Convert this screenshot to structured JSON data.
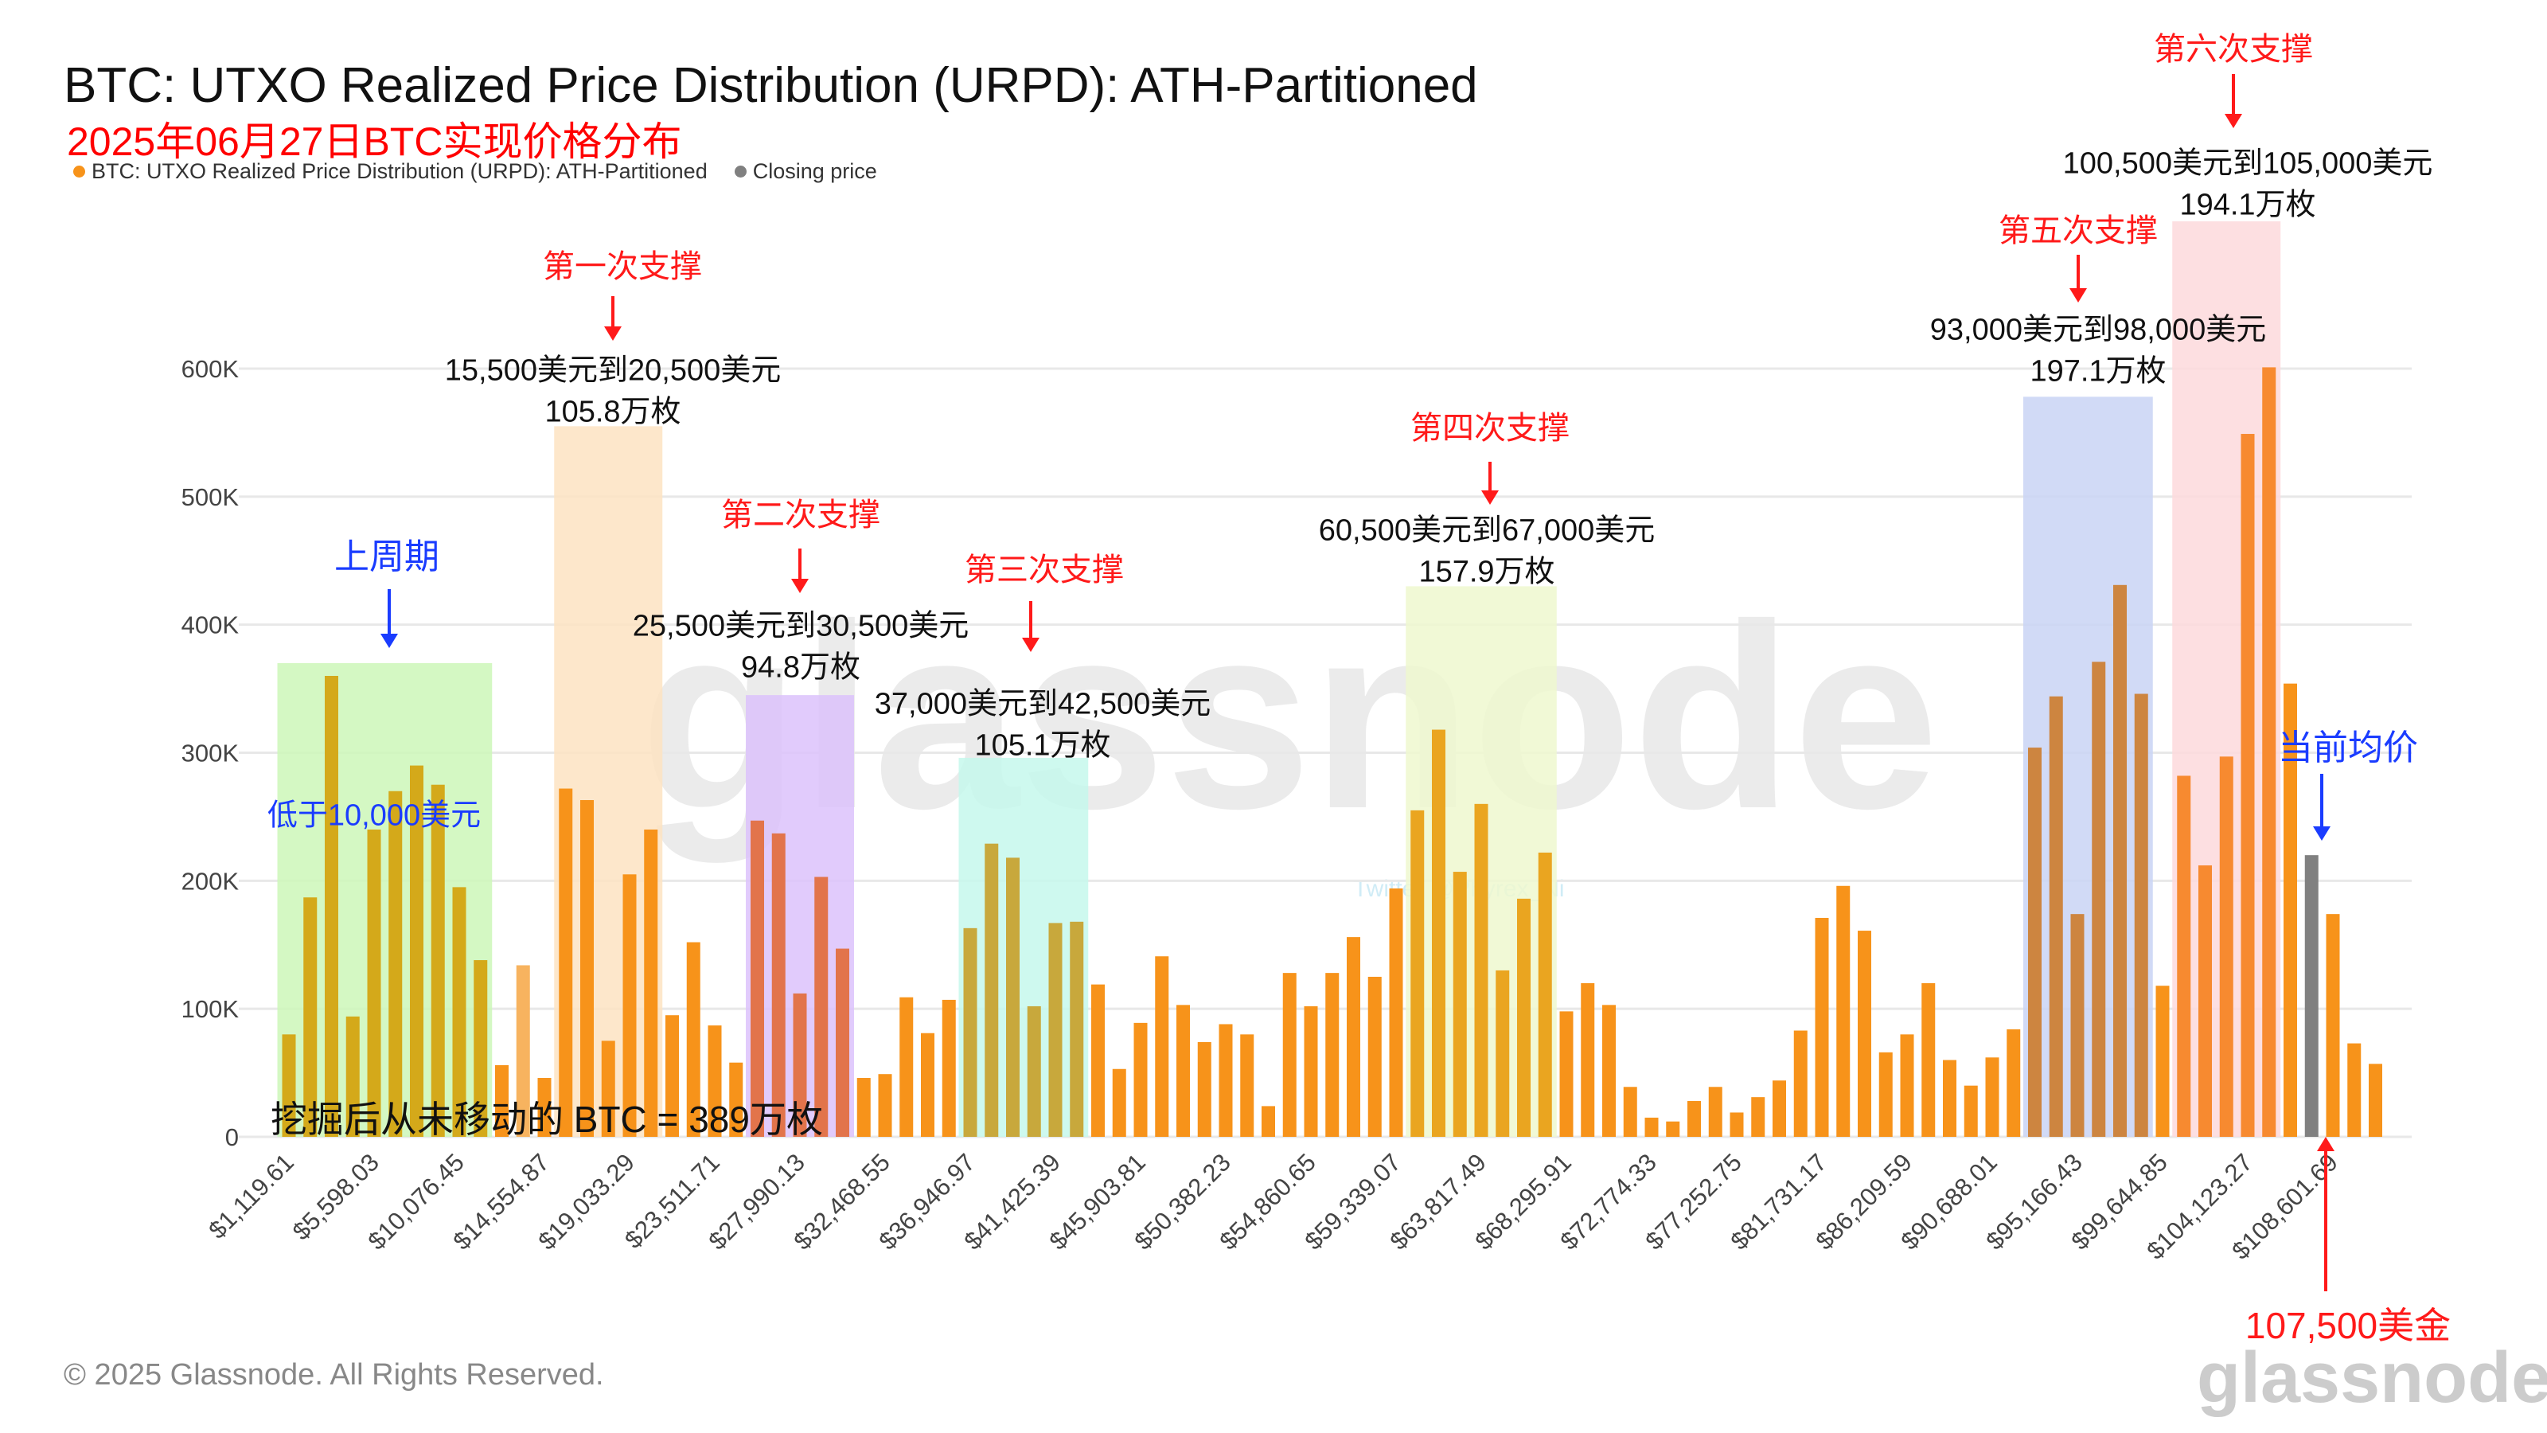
{
  "header": {
    "title": "BTC: UTXO Realized Price Distribution (URPD): ATH-Partitioned",
    "subtitle": "2025年06月27日BTC实现价格分布",
    "legend": [
      {
        "label": "BTC: UTXO Realized Price Distribution (URPD): ATH-Partitioned",
        "color": "#f7931a"
      },
      {
        "label": "Closing price",
        "color": "#808080"
      }
    ]
  },
  "chart_data": {
    "type": "bar",
    "title": "BTC: UTXO Realized Price Distribution (URPD): ATH-Partitioned",
    "ylim": [
      0,
      600000
    ],
    "y_ticks": [
      "0",
      "100K",
      "200K",
      "300K",
      "400K",
      "500K",
      "600K"
    ],
    "y_tick_values": [
      0,
      100000,
      200000,
      300000,
      400000,
      500000,
      600000
    ],
    "x_tick_labels": [
      "$1,119.61",
      "$5,598.03",
      "$10,076.45",
      "$14,554.87",
      "$19,033.29",
      "$23,511.71",
      "$27,990.13",
      "$32,468.55",
      "$36,946.97",
      "$41,425.39",
      "$45,903.81",
      "$50,382.23",
      "$54,860.65",
      "$59,339.07",
      "$63,817.49",
      "$68,295.91",
      "$72,774.33",
      "$77,252.75",
      "$81,731.17",
      "$86,209.59",
      "$90,688.01",
      "$95,166.43",
      "$99,644.85",
      "$104,123.27",
      "$108,601.69"
    ],
    "x_tick_every_n_bars": 4,
    "grid": true,
    "legend_position": "top-left",
    "closing_price_bar_index": 95,
    "values": [
      80000,
      187000,
      360000,
      94000,
      240000,
      270000,
      290000,
      275000,
      195000,
      138000,
      56000,
      134000,
      46000,
      272000,
      263000,
      75000,
      205000,
      240000,
      95000,
      152000,
      87000,
      58000,
      247000,
      237000,
      112000,
      203000,
      147000,
      46000,
      49000,
      109000,
      81000,
      107000,
      163000,
      229000,
      218000,
      102000,
      167000,
      168000,
      119000,
      53000,
      89000,
      141000,
      103000,
      74000,
      88000,
      80000,
      24000,
      128000,
      102000,
      128000,
      156000,
      125000,
      194000,
      255000,
      318000,
      207000,
      260000,
      130000,
      186000,
      222000,
      98000,
      120000,
      103000,
      39000,
      15000,
      12000,
      28000,
      39000,
      19000,
      31000,
      44000,
      83000,
      171000,
      196000,
      161000,
      66000,
      80000,
      120000,
      60000,
      40000,
      62000,
      84000,
      304000,
      344000,
      174000,
      371000,
      431000,
      346000,
      118000,
      282000,
      212000,
      297000,
      549000,
      601000,
      354000,
      220000,
      174000,
      73000,
      57000
    ],
    "colors": {
      "default": "#f7931a",
      "closing": "#808080"
    },
    "highlights": [
      {
        "from": 0,
        "to": 9,
        "top": 370000,
        "color": "#ccf7b8",
        "bar_color": "#d4a91a"
      },
      {
        "from": 13,
        "to": 17,
        "top": 555000,
        "color": "#fde3c2",
        "bar_color": "#f7931a"
      },
      {
        "from": 22,
        "to": 26,
        "top": 345000,
        "color": "#dcc2fb",
        "bar_color": "#e2744b"
      },
      {
        "from": 32,
        "to": 37,
        "top": 296000,
        "color": "#c5f8ec",
        "bar_color": "#c8a83c"
      },
      {
        "from": 53,
        "to": 59,
        "top": 430000,
        "color": "#eef8cf",
        "bar_color": "#eaa520"
      },
      {
        "from": 82,
        "to": 87,
        "top": 578000,
        "color": "#c9d3f5",
        "bar_color": "#cd8540"
      },
      {
        "from": 89,
        "to": 93,
        "top": 715000,
        "color": "#fdd9dc",
        "bar_color": "#f78a30"
      }
    ],
    "lighter_bar": {
      "index": 11,
      "color": "#f7b35f"
    }
  },
  "annotations": {
    "support1": {
      "label": "第一次支撑",
      "range": "15,500美元到20,500美元",
      "amount": "105.8万枚"
    },
    "support2": {
      "label": "第二次支撑",
      "range": "25,500美元到30,500美元",
      "amount": "94.8万枚"
    },
    "support3": {
      "label": "第三次支撑",
      "range": "37,000美元到42,500美元",
      "amount": "105.1万枚"
    },
    "support4": {
      "label": "第四次支撑",
      "range": "60,500美元到67,000美元",
      "amount": "157.9万枚"
    },
    "support5": {
      "label": "第五次支撑",
      "range": "93,000美元到98,000美元",
      "amount": "197.1万枚"
    },
    "support6": {
      "label": "第六次支撑",
      "range": "100,500美元到105,000美元",
      "amount": "194.1万枚"
    },
    "last_cycle": "上周期",
    "below_10k": "低于10,000美元",
    "current_avg": "当前均价",
    "current_price": "107,500美金",
    "never_moved": "挖掘后从未移动的 BTC = 389万枚",
    "twitter": "Twitter @Phyrex_Ni"
  },
  "footer": {
    "copyright": "© 2025 Glassnode. All Rights Reserved.",
    "logo": "glassnode",
    "watermark": "glassnode"
  }
}
